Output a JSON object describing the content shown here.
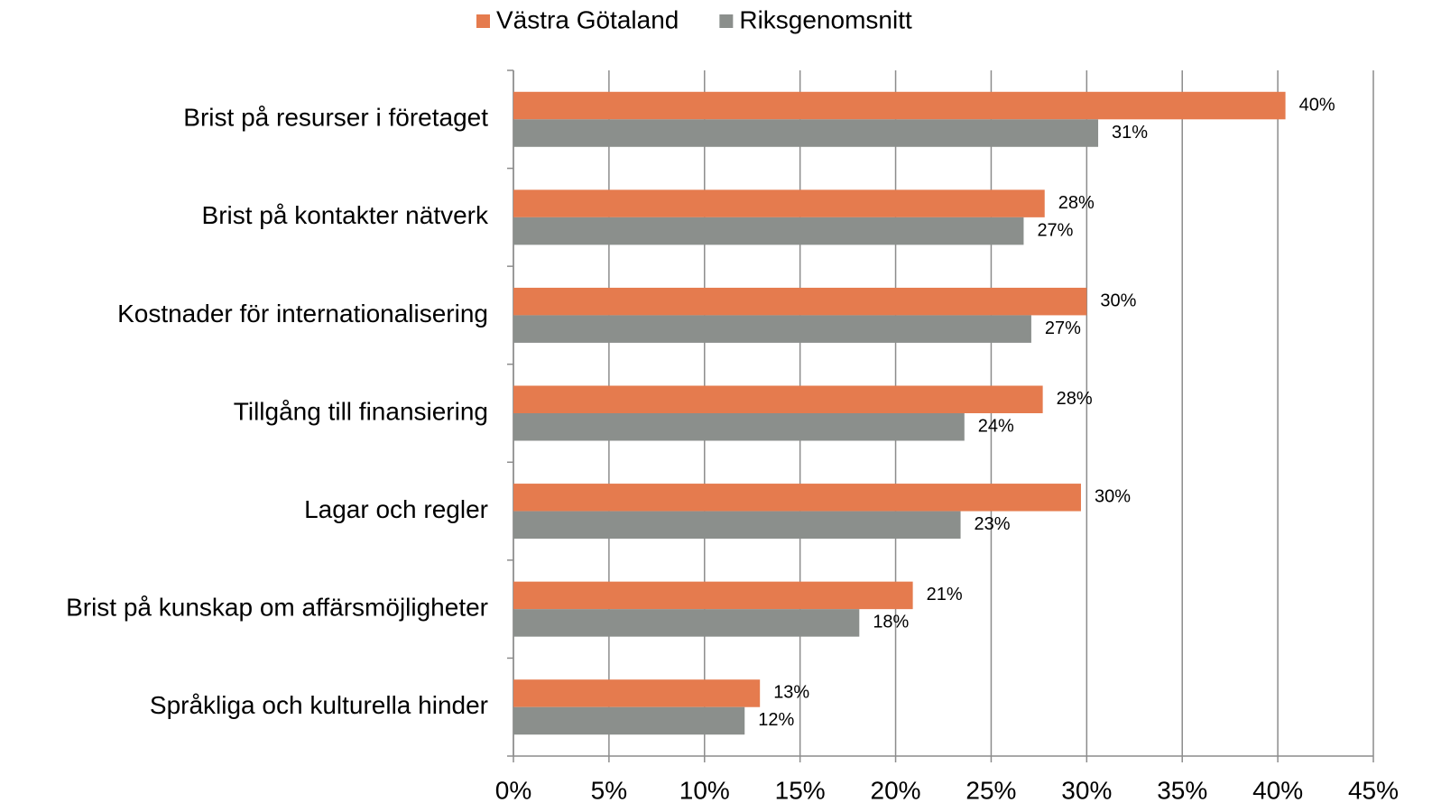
{
  "chart_data": {
    "type": "hbar",
    "categories": [
      "Brist på resurser i företaget",
      "Brist på kontakter nätverk",
      "Kostnader för internationalisering",
      "Tillgång till finansiering",
      "Lagar och regler",
      "Brist på kunskap om affärsmöjligheter",
      "Språkliga och kulturella hinder"
    ],
    "series": [
      {
        "name": "Västra Götaland",
        "color": "#e57b4e",
        "values": [
          40.4,
          27.8,
          30.0,
          27.7,
          29.7,
          20.9,
          12.9
        ],
        "value_labels": [
          "40%",
          "28%",
          "30%",
          "28%",
          "30%",
          "21%",
          "13%"
        ]
      },
      {
        "name": "Riksgenomsnitt",
        "color": "#8b8f8c",
        "values": [
          30.6,
          26.7,
          27.1,
          23.6,
          23.4,
          18.1,
          12.1
        ],
        "value_labels": [
          "31%",
          "27%",
          "27%",
          "24%",
          "23%",
          "18%",
          "12%"
        ]
      }
    ],
    "xlim": [
      0,
      45
    ],
    "xticks": [
      {
        "value": 0,
        "label": "0%"
      },
      {
        "value": 5,
        "label": "5%"
      },
      {
        "value": 10,
        "label": "10%"
      },
      {
        "value": 15,
        "label": "15%"
      },
      {
        "value": 20,
        "label": "20%"
      },
      {
        "value": 25,
        "label": "25%"
      },
      {
        "value": 30,
        "label": "30%"
      },
      {
        "value": 35,
        "label": "35%"
      },
      {
        "value": 40,
        "label": "40%"
      },
      {
        "value": 45,
        "label": "45%"
      }
    ],
    "grid": true,
    "legend": "top"
  }
}
